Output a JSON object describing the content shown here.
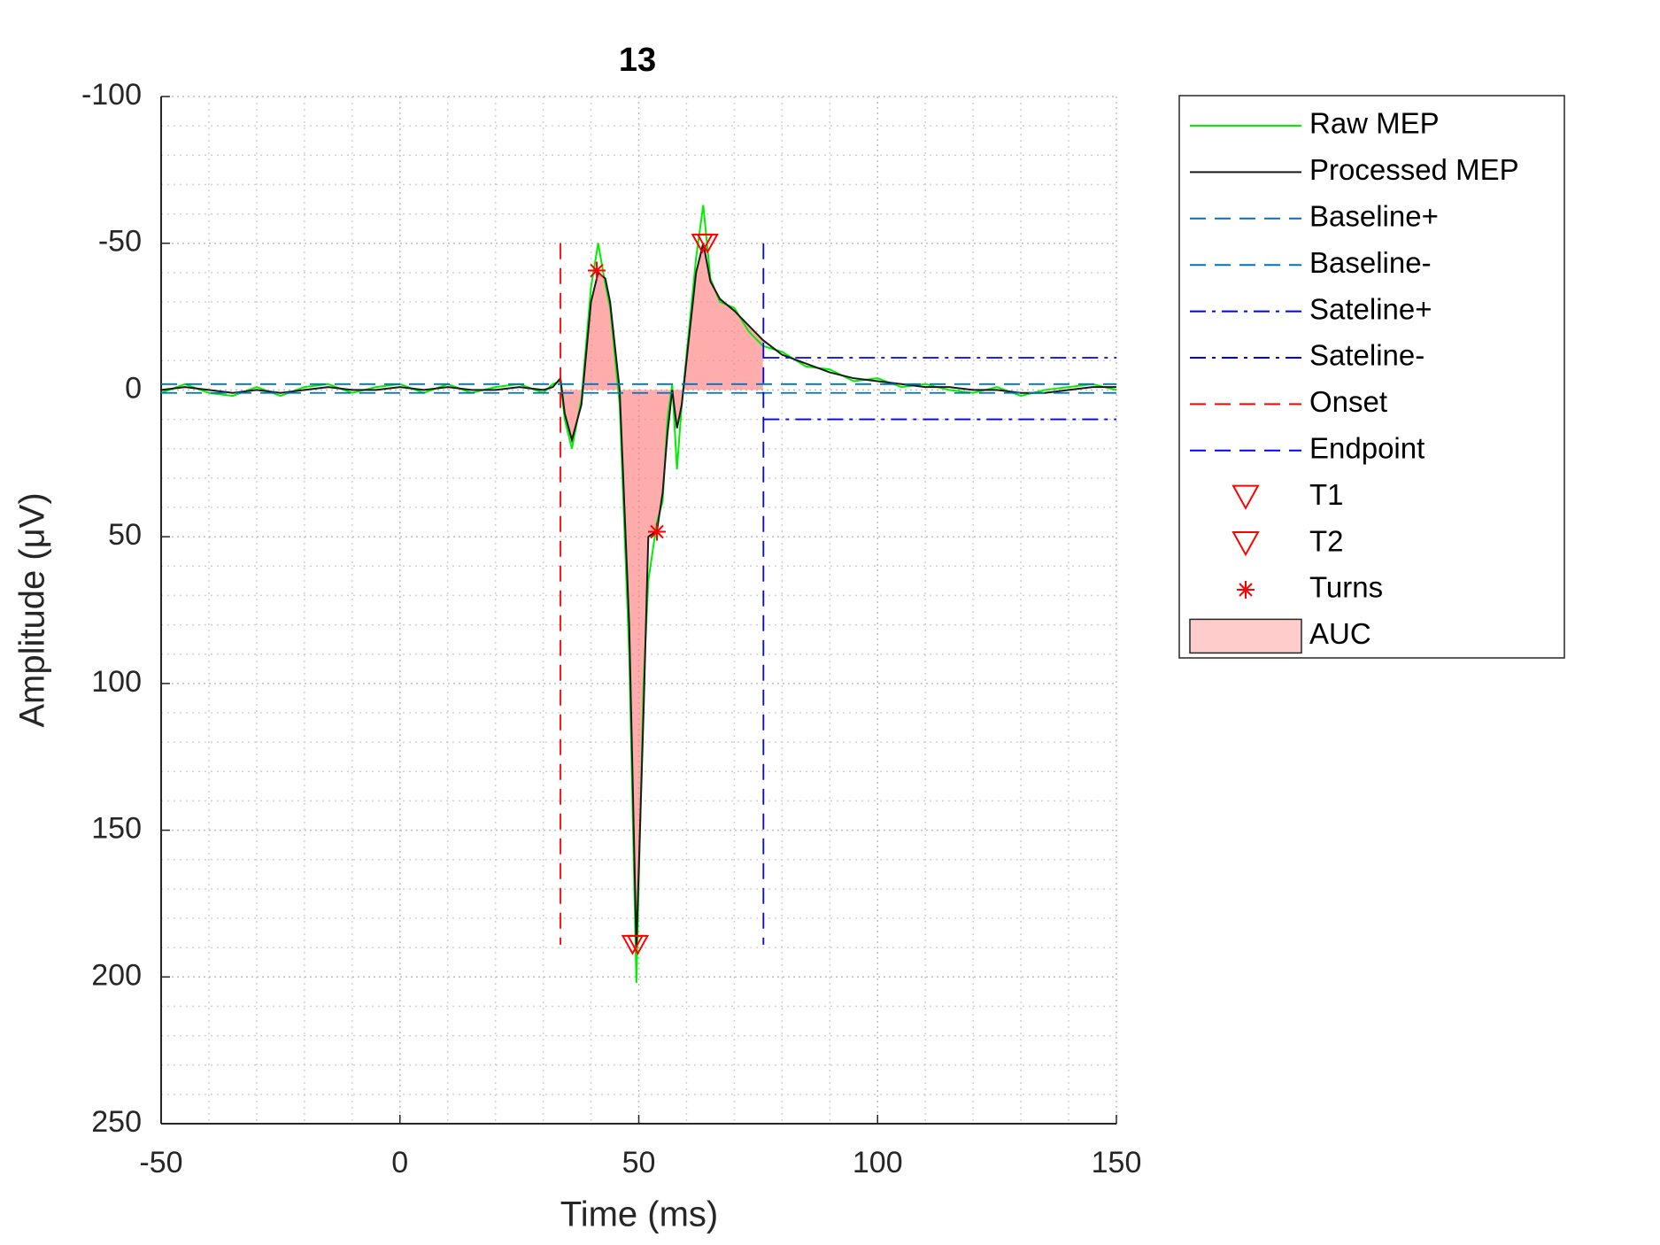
{
  "chart_data": {
    "type": "line",
    "title": "13",
    "xlabel": "Time (ms)",
    "ylabel": "Amplitude (μV)",
    "xlim": [
      -50,
      150
    ],
    "ylim": [
      -100,
      250
    ],
    "y_reversed": true,
    "xticks": [
      -50,
      0,
      50,
      100,
      150
    ],
    "yticks": [
      -100,
      -50,
      0,
      50,
      100,
      150,
      200,
      250
    ],
    "grid": true,
    "minor_grid": true,
    "legend": "northeastoutside",
    "series": [
      {
        "name": "Raw MEP",
        "color": "#00ee00",
        "style": "solid",
        "x": [
          -50,
          -45,
          -40,
          -35,
          -30,
          -25,
          -20,
          -15,
          -10,
          -5,
          0,
          5,
          10,
          15,
          20,
          25,
          30,
          32,
          33.6,
          34.5,
          36,
          38,
          40,
          41.5,
          43,
          44,
          46,
          48,
          49.5,
          51,
          52,
          53.8,
          55,
          56,
          57,
          58,
          59,
          60,
          62,
          63.5,
          65,
          67,
          70,
          73,
          76,
          80,
          85,
          90,
          95,
          100,
          105,
          110,
          115,
          120,
          125,
          130,
          135,
          140,
          145,
          150
        ],
        "values": [
          1,
          -2,
          1,
          2,
          -1,
          2,
          -1,
          -2,
          1,
          -1,
          -2,
          1,
          -2,
          1,
          -1,
          -2,
          1,
          -2,
          -3,
          10,
          20,
          3,
          -35,
          -50,
          -36,
          -28,
          5,
          90,
          202,
          100,
          65,
          45,
          38,
          10,
          -2,
          27,
          5,
          -12,
          -45,
          -63,
          -38,
          -30,
          -28,
          -20,
          -15,
          -13,
          -8,
          -7,
          -3,
          -4,
          -1,
          -2,
          0,
          1,
          -1,
          2,
          0,
          -1,
          -2,
          0
        ]
      },
      {
        "name": "Processed MEP",
        "color": "#1a1a1a",
        "style": "solid",
        "x": [
          -50,
          -45,
          -40,
          -35,
          -30,
          -25,
          -20,
          -15,
          -10,
          -5,
          0,
          5,
          10,
          15,
          20,
          25,
          30,
          32,
          33.6,
          34.5,
          36,
          38,
          40,
          41.5,
          43,
          44,
          46,
          48,
          49.5,
          51,
          52,
          53.8,
          55,
          56,
          57,
          58,
          59,
          60,
          62,
          63.5,
          65,
          67,
          70,
          73,
          76,
          80,
          85,
          90,
          95,
          100,
          105,
          110,
          115,
          120,
          125,
          130,
          135,
          140,
          145,
          150
        ],
        "values": [
          0,
          -1,
          0,
          1,
          0,
          1,
          0,
          -1,
          0,
          0,
          -1,
          0,
          -1,
          0,
          0,
          -1,
          0,
          -1,
          -4,
          8,
          17,
          5,
          -30,
          -40,
          -38,
          -30,
          0,
          80,
          190,
          110,
          50,
          48,
          35,
          15,
          0,
          13,
          5,
          -10,
          -40,
          -50,
          -37,
          -31,
          -27,
          -22,
          -17,
          -12,
          -9,
          -6,
          -4,
          -3,
          -2,
          -1,
          -1,
          0,
          0,
          1,
          1,
          0,
          -1,
          -1
        ]
      },
      {
        "name": "Baseline+",
        "color": "#0072bd",
        "style": "dashed",
        "x": [
          -50,
          150
        ],
        "values": [
          -2,
          -2
        ]
      },
      {
        "name": "Baseline-",
        "color": "#0072bd",
        "style": "dashed",
        "x": [
          -50,
          150
        ],
        "values": [
          1,
          1
        ]
      },
      {
        "name": "Sateline+",
        "color": "#0000ff",
        "style": "dashdot",
        "x": [
          76.1,
          150
        ],
        "values": [
          -11,
          -11
        ]
      },
      {
        "name": "Sateline-",
        "color": "#0000ff",
        "style": "dashdot",
        "x": [
          76.1,
          150
        ],
        "values": [
          10,
          10
        ]
      },
      {
        "name": "Onset",
        "color": "#ff0000",
        "style": "dashed",
        "x": [
          33.6,
          33.6
        ],
        "values": [
          -50,
          189
        ]
      },
      {
        "name": "Endpoint",
        "color": "#0000ff",
        "style": "dashed",
        "x": [
          76.1,
          76.1
        ],
        "values": [
          -50,
          189
        ]
      },
      {
        "name": "T1",
        "color": "#ff0000",
        "style": "none",
        "marker": "triangle",
        "x": [
          48.7,
          63.3
        ],
        "values": [
          189,
          -50
        ]
      },
      {
        "name": "T2",
        "color": "#ff0000",
        "style": "none",
        "marker": "triangle",
        "x": [
          49.8,
          64.4
        ],
        "values": [
          189,
          -50
        ]
      },
      {
        "name": "Turns",
        "color": "#ff0000",
        "style": "none",
        "marker": "star",
        "x": [
          41.2,
          53.8
        ],
        "values": [
          -40.7,
          48.3
        ]
      },
      {
        "name": "AUC",
        "color": "#ff8080",
        "style": "area",
        "x": [
          33.6,
          34.5,
          36,
          38,
          40,
          41.5,
          43,
          44,
          46,
          48,
          49.5,
          51,
          52,
          53.8,
          55,
          56,
          57,
          58,
          59,
          60,
          62,
          63.5,
          65,
          67,
          70,
          73,
          76
        ],
        "values": [
          -4,
          8,
          17,
          5,
          -30,
          -40,
          -38,
          -30,
          0,
          80,
          190,
          110,
          50,
          48,
          35,
          15,
          0,
          13,
          5,
          -10,
          -40,
          -50,
          -37,
          -31,
          -27,
          -22,
          -17
        ]
      }
    ]
  }
}
